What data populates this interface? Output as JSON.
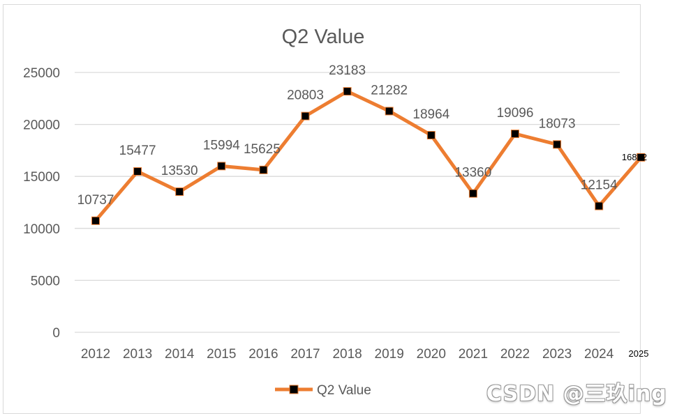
{
  "chart_data": {
    "type": "line",
    "title": "Q2 Value",
    "xlabel": "",
    "ylabel": "",
    "categories": [
      "2012",
      "2013",
      "2014",
      "2015",
      "2016",
      "2017",
      "2018",
      "2019",
      "2020",
      "2021",
      "2022",
      "2023",
      "2024",
      "2025"
    ],
    "series": [
      {
        "name": "Q2 Value",
        "values": [
          10737,
          15477,
          13530,
          15994,
          15625,
          20803,
          23183,
          21282,
          18964,
          13360,
          19096,
          18073,
          12154,
          16832
        ],
        "color": "#ed7d31",
        "marker_color": "#000000"
      }
    ],
    "ylim": [
      0,
      25000
    ],
    "yticks": [
      0,
      5000,
      10000,
      15000,
      20000,
      25000
    ],
    "grid": "horizontal",
    "legend": "bottom",
    "data_labels": true
  },
  "watermark": "CSDN @三玖ing",
  "colors": {
    "gridline": "#d9d9d9",
    "text": "#595959"
  }
}
